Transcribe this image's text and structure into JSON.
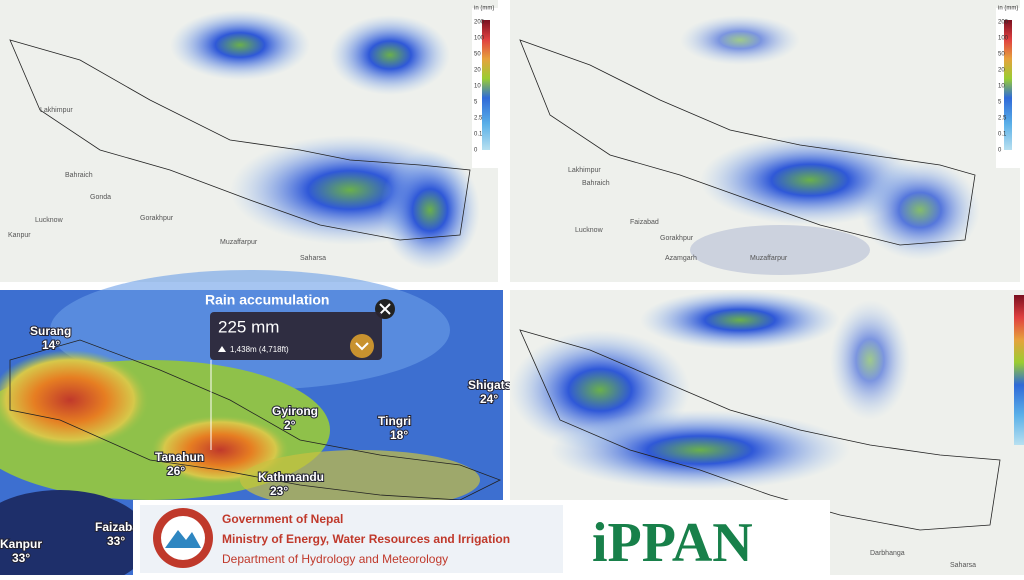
{
  "legend": {
    "unit": "in (mm)",
    "values": [
      200,
      100,
      50,
      20,
      10,
      5,
      2.5,
      0.1,
      0
    ]
  },
  "top_left": {
    "places": [
      "Lakhimpur",
      "Bahraich",
      "Gonda",
      "Lucknow",
      "Kanpur",
      "Gorakhpur",
      "Muzaffarpur",
      "Saharsa"
    ]
  },
  "top_right": {
    "places": [
      "Lakhimpur",
      "Bahraich",
      "Lucknow",
      "Gorakhpur",
      "Faizabad",
      "Azamgarh",
      "Muzaffarpur"
    ]
  },
  "bottom_left": {
    "title": "Rain accumulation",
    "amount": "225 mm",
    "elevation": "1,438m (4,718ft)",
    "places": [
      {
        "name": "Surang",
        "temp": "14°"
      },
      {
        "name": "Shigatse",
        "temp": "24°"
      },
      {
        "name": "Gyirong",
        "temp": "2°"
      },
      {
        "name": "Tingri",
        "temp": "18°"
      },
      {
        "name": "Tanahun",
        "temp": "26°"
      },
      {
        "name": "Kathmandu",
        "temp": "23°"
      },
      {
        "name": "Faizabad",
        "temp": "33°"
      },
      {
        "name": "Kanpur",
        "temp": "33°"
      }
    ]
  },
  "bottom_right": {
    "places": [
      "Darbhanga",
      "Saharsa"
    ]
  },
  "banner": {
    "government": "Government of Nepal",
    "ministry": "Ministry of Energy, Water Resources and Irrigation",
    "department": "Department of Hydrology and Meteorology",
    "brand": "iPPAN"
  }
}
